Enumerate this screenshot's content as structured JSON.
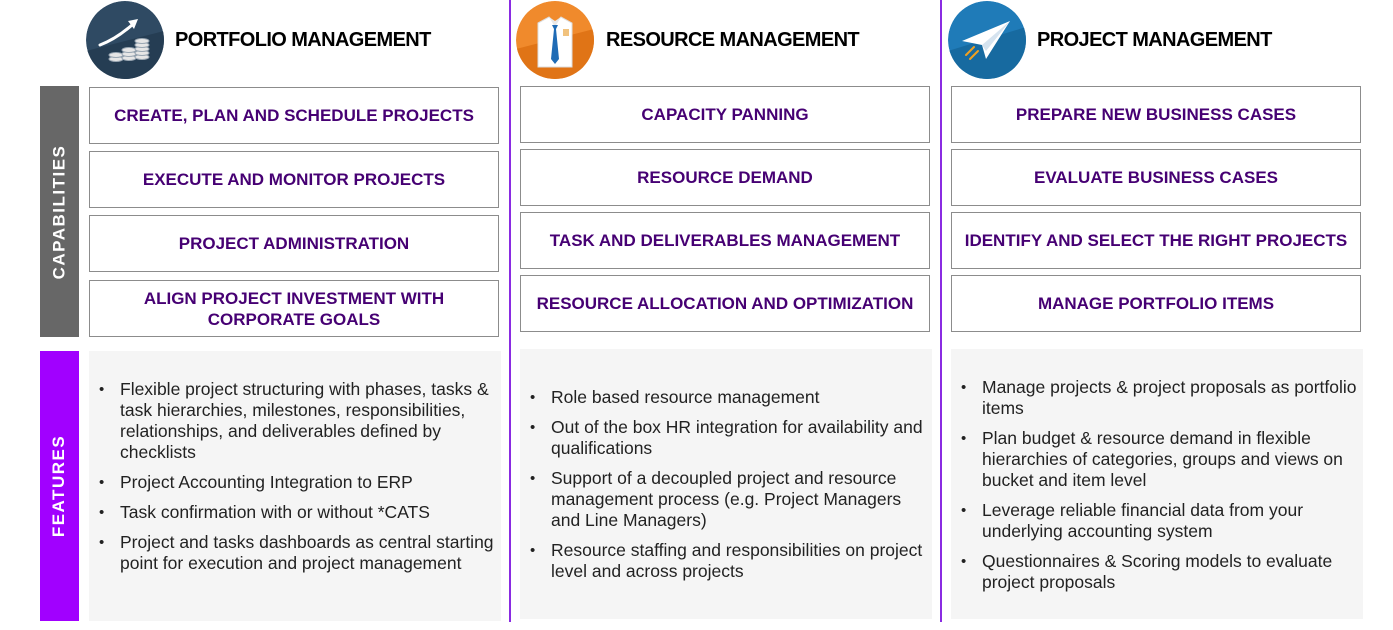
{
  "row_labels": {
    "capabilities": "CAPABILITIES",
    "features": "FEATURES"
  },
  "colors": {
    "capability_text": "#460073",
    "accent_purple": "#a100ff",
    "capabilities_band": "#676767",
    "divider": "#8a2be2"
  },
  "columns": [
    {
      "icon": "growth-coins-icon",
      "title": "PORTFOLIO MANAGEMENT",
      "capabilities": [
        "CREATE, PLAN AND SCHEDULE PROJECTS",
        "EXECUTE AND MONITOR PROJECTS",
        "PROJECT ADMINISTRATION",
        "ALIGN PROJECT INVESTMENT WITH CORPORATE GOALS"
      ],
      "features": [
        "Flexible project structuring with phases, tasks & task hierarchies, milestones, responsibilities, relationships, and deliverables defined by checklists",
        "Project Accounting Integration to ERP",
        "Task confirmation with or without *CATS",
        "Project and tasks dashboards as central starting point for execution and project management"
      ]
    },
    {
      "icon": "shirt-tie-icon",
      "title": "RESOURCE MANAGEMENT",
      "capabilities": [
        "CAPACITY PANNING",
        "RESOURCE DEMAND",
        "TASK AND DELIVERABLES MANAGEMENT",
        "RESOURCE ALLOCATION AND OPTIMIZATION"
      ],
      "features": [
        "Role based resource management",
        "Out of the box HR integration for availability and qualifications",
        "Support of a decoupled project and resource management process (e.g. Project Managers and Line Managers)",
        "Resource staffing and responsibilities on project level and across projects"
      ]
    },
    {
      "icon": "paper-plane-icon",
      "title": "PROJECT MANAGEMENT",
      "capabilities": [
        "PREPARE NEW BUSINESS CASES",
        "EVALUATE BUSINESS CASES",
        "IDENTIFY AND SELECT THE RIGHT PROJECTS",
        "MANAGE PORTFOLIO ITEMS"
      ],
      "features": [
        "Manage projects & project proposals as portfolio items",
        "Plan budget & resource demand in flexible hierarchies of categories, groups and views on bucket and item level",
        "Leverage reliable financial data from your underlying accounting system",
        "Questionnaires & Scoring models to evaluate project proposals"
      ]
    }
  ]
}
